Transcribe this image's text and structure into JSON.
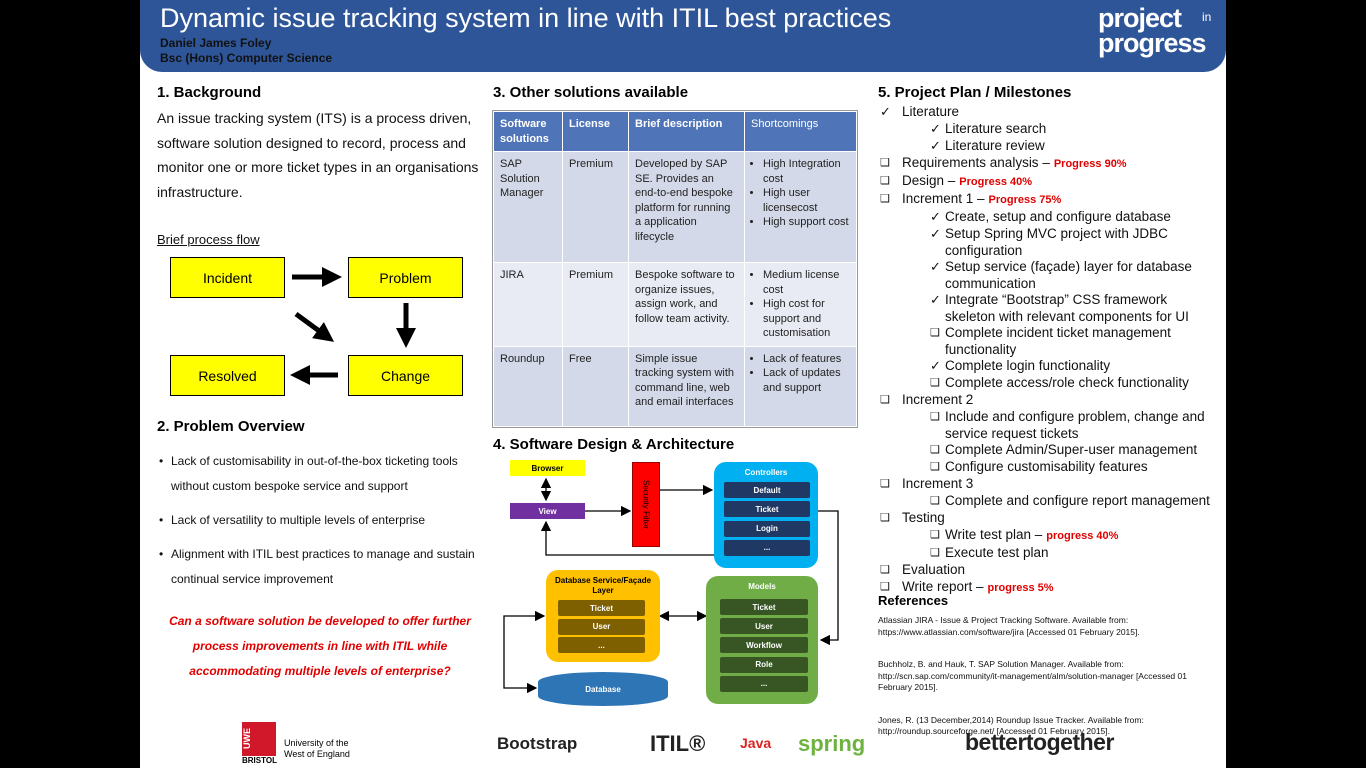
{
  "header": {
    "title": "Dynamic issue tracking system in line with ITIL best practices",
    "author": "Daniel James Foley",
    "degree": "Bsc (Hons) Computer Science",
    "logo": {
      "line1": "project",
      "small": "in",
      "line2": "progress"
    }
  },
  "background": {
    "heading": "1. Background",
    "text": "An issue tracking system (ITS) is a process driven, software solution designed to record, process and monitor one or more ticket types in an organisations infrastructure.",
    "flow_label": "Brief process flow",
    "flow": [
      "Incident",
      "Problem",
      "Change",
      "Resolved"
    ]
  },
  "problem": {
    "heading": "2. Problem Overview",
    "bullets": [
      "Lack of customisability in out-of-the-box ticketing tools without custom bespoke service and support",
      "Lack of versatility to multiple levels of enterprise",
      "Alignment with ITIL best practices to manage and sustain continual service improvement"
    ],
    "question": "Can a software solution be developed to offer further process improvements in line with ITIL while accommodating multiple levels of enterprise?"
  },
  "solutions": {
    "heading": "3. Other solutions available",
    "headers": [
      "Software solutions",
      "License",
      "Brief description",
      "Shortcomings"
    ],
    "rows": [
      [
        "SAP Solution Manager",
        "Premium",
        "Developed by SAP SE. Provides an end-to-end bespoke platform for running a application lifecycle",
        [
          "High Integration cost",
          "High user licensecost",
          "High support cost"
        ]
      ],
      [
        "JIRA",
        "Premium",
        "Bespoke software to organize issues, assign work, and follow team activity.",
        [
          "Medium license cost",
          "High cost for support and customisation"
        ]
      ],
      [
        "Roundup",
        "Free",
        "Simple issue tracking system with command line, web and email interfaces",
        [
          "Lack of features",
          "Lack of updates and support"
        ]
      ]
    ]
  },
  "architecture": {
    "heading": "4. Software Design & Architecture",
    "browser": "Browser",
    "view": "View",
    "security_filter": "Security Filter",
    "controllers": {
      "title": "Controllers",
      "items": [
        "Default",
        "Ticket",
        "Login",
        "..."
      ]
    },
    "service": {
      "title": "Database Service/Façade Layer",
      "items": [
        "Ticket",
        "User",
        "..."
      ]
    },
    "models": {
      "title": "Models",
      "items": [
        "Ticket",
        "User",
        "Workflow",
        "Role",
        "..."
      ]
    },
    "database": "Database"
  },
  "plan": {
    "heading": "5. Project Plan / Milestones",
    "items": [
      {
        "mark": "✓",
        "text": "Literature",
        "children": [
          {
            "mark": "✓",
            "text": "Literature search"
          },
          {
            "mark": "✓",
            "text": "Literature review"
          }
        ]
      },
      {
        "mark": "❑",
        "text": "Requirements analysis –",
        "progress": "Progress 90%"
      },
      {
        "mark": "❑",
        "text": "Design –",
        "progress": "Progress 40%"
      },
      {
        "mark": "❑",
        "text": "Increment 1 –",
        "progress": "Progress 75%",
        "children": [
          {
            "mark": "✓",
            "text": "Create, setup and configure database"
          },
          {
            "mark": "✓",
            "text": "Setup Spring MVC project with JDBC configuration"
          },
          {
            "mark": "✓",
            "text": "Setup service (façade) layer for database communication"
          },
          {
            "mark": "✓",
            "text": "Integrate “Bootstrap” CSS framework skeleton with relevant components for UI"
          },
          {
            "mark": "❑",
            "text": "Complete incident ticket management functionality"
          },
          {
            "mark": "✓",
            "text": "Complete login functionality"
          },
          {
            "mark": "❑",
            "text": "Complete access/role check functionality"
          }
        ]
      },
      {
        "mark": "❑",
        "text": "Increment 2",
        "children": [
          {
            "mark": "❑",
            "text": "Include and configure problem, change and service request tickets"
          },
          {
            "mark": "❑",
            "text": "Complete Admin/Super-user management"
          },
          {
            "mark": "❑",
            "text": "Configure customisability features"
          }
        ]
      },
      {
        "mark": "❑",
        "text": "Increment 3",
        "children": [
          {
            "mark": "❑",
            "text": "Complete and configure report management"
          }
        ]
      },
      {
        "mark": "❑",
        "text": "Testing",
        "children": [
          {
            "mark": "❑",
            "text": "Write test plan –",
            "progress": "progress 40%"
          },
          {
            "mark": "❑",
            "text": "Execute test plan"
          }
        ]
      },
      {
        "mark": "❑",
        "text": "Evaluation"
      },
      {
        "mark": "❑",
        "text": "Write report –",
        "progress": "progress 5%"
      }
    ]
  },
  "references": {
    "heading": "References",
    "entries": [
      "Atlassian JIRA - Issue & Project Tracking Software. Available from: https://www.atlassian.com/software/jira [Accessed 01 February 2015].",
      "Buchholz, B. and Hauk, T. SAP Solution Manager. Available from: http://scn.sap.com/community/it-management/alm/solution-manager [Accessed 01 February 2015].",
      "Jones, R. (13 December,2014) Roundup Issue Tracker. Available from: http://roundup.sourceforge.net/ [Accessed 01 February 2015]."
    ]
  },
  "footer": {
    "uwe": {
      "badge": "UWE",
      "city": "BRISTOL",
      "name": "University of the West of England"
    },
    "logos": [
      "Bootstrap",
      "ITIL®",
      "Java",
      "spring"
    ],
    "partner": "bettertogether"
  }
}
